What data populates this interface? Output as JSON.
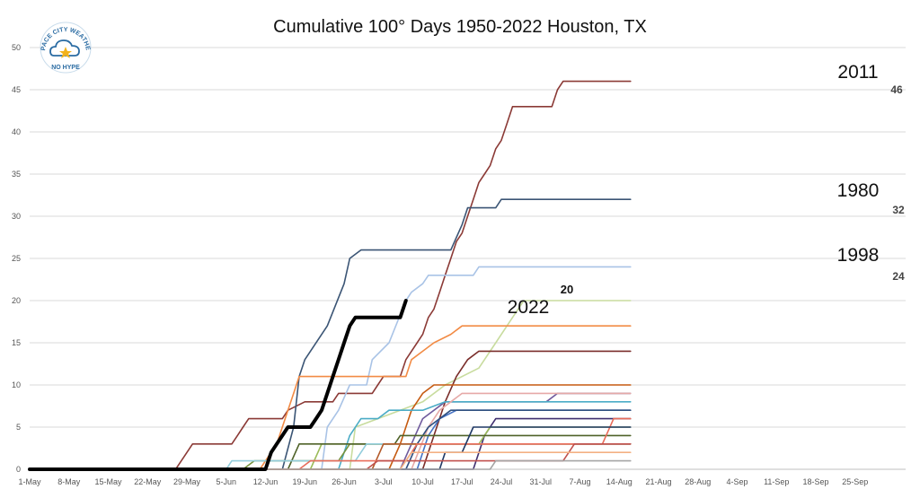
{
  "chart_data": {
    "type": "line",
    "title": "Cumulative 100° Days 1950-2022 Houston, TX",
    "xlabel": "",
    "ylabel": "",
    "x_ticks": [
      "1-May",
      "8-May",
      "15-May",
      "22-May",
      "29-May",
      "5-Jun",
      "12-Jun",
      "19-Jun",
      "26-Jun",
      "3-Jul",
      "10-Jul",
      "17-Jul",
      "24-Jul",
      "31-Jul",
      "7-Aug",
      "14-Aug",
      "21-Aug",
      "28-Aug",
      "4-Sep",
      "11-Sep",
      "18-Sep",
      "25-Sep"
    ],
    "y_ticks": [
      0,
      5,
      10,
      15,
      20,
      25,
      30,
      35,
      40,
      45,
      50
    ],
    "ylim": [
      0,
      50
    ],
    "xlim_days": [
      0,
      156
    ],
    "grid": "horizontal",
    "highlighted": [
      {
        "name": "2011",
        "end_label": "46",
        "color": "#8b3a36"
      },
      {
        "name": "1980",
        "end_label": "32",
        "color": "#3b5575"
      },
      {
        "name": "1998",
        "end_label": "24",
        "color": "#a9c3e6"
      },
      {
        "name": "2022",
        "end_label": "20",
        "color": "#000000"
      }
    ],
    "series": [
      {
        "name": "2022",
        "color": "#000000",
        "points": [
          [
            0,
            0
          ],
          [
            42,
            0
          ],
          [
            43,
            2
          ],
          [
            44,
            3
          ],
          [
            45,
            4
          ],
          [
            46,
            5
          ],
          [
            50,
            5
          ],
          [
            51,
            6
          ],
          [
            52,
            7
          ],
          [
            53,
            9
          ],
          [
            54,
            11
          ],
          [
            55,
            13
          ],
          [
            56,
            15
          ],
          [
            57,
            17
          ],
          [
            58,
            18
          ],
          [
            66,
            18
          ],
          [
            67,
            20
          ]
        ]
      },
      {
        "name": "2011",
        "color": "#8b3a36",
        "points": [
          [
            0,
            0
          ],
          [
            26,
            0
          ],
          [
            27,
            1
          ],
          [
            29,
            3
          ],
          [
            36,
            3
          ],
          [
            37,
            4
          ],
          [
            38,
            5
          ],
          [
            39,
            6
          ],
          [
            45,
            6
          ],
          [
            46,
            7
          ],
          [
            49,
            8
          ],
          [
            54,
            8
          ],
          [
            55,
            9
          ],
          [
            61,
            9
          ],
          [
            62,
            10
          ],
          [
            63,
            11
          ],
          [
            66,
            11
          ],
          [
            67,
            13
          ],
          [
            68,
            14
          ],
          [
            69,
            15
          ],
          [
            70,
            16
          ],
          [
            71,
            18
          ],
          [
            72,
            19
          ],
          [
            73,
            21
          ],
          [
            74,
            23
          ],
          [
            75,
            25
          ],
          [
            76,
            27
          ],
          [
            77,
            28
          ],
          [
            78,
            30
          ],
          [
            79,
            32
          ],
          [
            80,
            34
          ],
          [
            81,
            35
          ],
          [
            82,
            36
          ],
          [
            83,
            38
          ],
          [
            84,
            39
          ],
          [
            85,
            41
          ],
          [
            86,
            43
          ],
          [
            93,
            43
          ],
          [
            94,
            45
          ],
          [
            95,
            46
          ],
          [
            107,
            46
          ]
        ]
      },
      {
        "name": "1980",
        "color": "#3b5575",
        "points": [
          [
            0,
            0
          ],
          [
            45,
            0
          ],
          [
            47,
            5
          ],
          [
            48,
            11
          ],
          [
            49,
            13
          ],
          [
            53,
            17
          ],
          [
            56,
            22
          ],
          [
            57,
            25
          ],
          [
            59,
            26
          ],
          [
            75,
            26
          ],
          [
            77,
            29
          ],
          [
            78,
            31
          ],
          [
            83,
            31
          ],
          [
            84,
            32
          ],
          [
            107,
            32
          ]
        ]
      },
      {
        "name": "1998",
        "color": "#a9c3e6",
        "points": [
          [
            0,
            0
          ],
          [
            52,
            0
          ],
          [
            53,
            5
          ],
          [
            55,
            7
          ],
          [
            57,
            10
          ],
          [
            60,
            10
          ],
          [
            61,
            13
          ],
          [
            64,
            15
          ],
          [
            67,
            20
          ],
          [
            68,
            21
          ],
          [
            70,
            22
          ],
          [
            71,
            23
          ],
          [
            79,
            23
          ],
          [
            80,
            24
          ],
          [
            107,
            24
          ]
        ]
      },
      {
        "name": "",
        "color": "#c8dc9e",
        "points": [
          [
            0,
            0
          ],
          [
            57,
            0
          ],
          [
            58,
            5
          ],
          [
            66,
            7
          ],
          [
            70,
            8
          ],
          [
            74,
            10
          ],
          [
            80,
            12
          ],
          [
            83,
            15
          ],
          [
            86,
            18
          ],
          [
            88,
            20
          ],
          [
            107,
            20
          ]
        ]
      },
      {
        "name": "",
        "color": "#f28b45",
        "points": [
          [
            0,
            0
          ],
          [
            41,
            0
          ],
          [
            42,
            1
          ],
          [
            44,
            3
          ],
          [
            46,
            7
          ],
          [
            47,
            9
          ],
          [
            48,
            11
          ],
          [
            67,
            11
          ],
          [
            68,
            13
          ],
          [
            70,
            14
          ],
          [
            72,
            15
          ],
          [
            75,
            16
          ],
          [
            77,
            17
          ],
          [
            107,
            17
          ]
        ]
      },
      {
        "name": "",
        "color": "#7a2d2a",
        "points": [
          [
            0,
            0
          ],
          [
            70,
            0
          ],
          [
            72,
            4
          ],
          [
            74,
            8
          ],
          [
            76,
            11
          ],
          [
            78,
            13
          ],
          [
            80,
            14
          ],
          [
            107,
            14
          ]
        ]
      },
      {
        "name": "",
        "color": "#c55a11",
        "points": [
          [
            0,
            0
          ],
          [
            64,
            0
          ],
          [
            66,
            3
          ],
          [
            68,
            7
          ],
          [
            70,
            9
          ],
          [
            72,
            10
          ],
          [
            107,
            10
          ]
        ]
      },
      {
        "name": "",
        "color": "#6f5a9c",
        "points": [
          [
            0,
            0
          ],
          [
            66,
            0
          ],
          [
            68,
            3
          ],
          [
            70,
            6
          ],
          [
            74,
            8
          ],
          [
            92,
            8
          ],
          [
            94,
            9
          ],
          [
            107,
            9
          ]
        ]
      },
      {
        "name": "",
        "color": "#4bacc6",
        "points": [
          [
            0,
            0
          ],
          [
            55,
            0
          ],
          [
            57,
            4
          ],
          [
            59,
            6
          ],
          [
            62,
            6
          ],
          [
            64,
            7
          ],
          [
            70,
            7
          ],
          [
            74,
            8
          ],
          [
            107,
            8
          ]
        ]
      },
      {
        "name": "",
        "color": "#e6a9a7",
        "points": [
          [
            0,
            0
          ],
          [
            68,
            0
          ],
          [
            71,
            5
          ],
          [
            73,
            7
          ],
          [
            75,
            8
          ],
          [
            77,
            9
          ],
          [
            107,
            9
          ]
        ]
      },
      {
        "name": "",
        "color": "#4472c4",
        "points": [
          [
            0,
            0
          ],
          [
            69,
            0
          ],
          [
            71,
            4
          ],
          [
            73,
            6
          ],
          [
            76,
            7
          ],
          [
            107,
            7
          ]
        ]
      },
      {
        "name": "",
        "color": "#2f4f7f",
        "points": [
          [
            0,
            0
          ],
          [
            67,
            0
          ],
          [
            69,
            3
          ],
          [
            71,
            5
          ],
          [
            75,
            7
          ],
          [
            107,
            7
          ]
        ]
      },
      {
        "name": "",
        "color": "#403070",
        "points": [
          [
            0,
            0
          ],
          [
            79,
            0
          ],
          [
            81,
            4
          ],
          [
            83,
            6
          ],
          [
            107,
            6
          ]
        ]
      },
      {
        "name": "",
        "color": "#9bbb59",
        "points": [
          [
            0,
            0
          ],
          [
            50,
            0
          ],
          [
            52,
            3
          ],
          [
            80,
            3
          ],
          [
            82,
            5
          ],
          [
            107,
            5
          ]
        ]
      },
      {
        "name": "",
        "color": "#76923c",
        "points": [
          [
            0,
            0
          ],
          [
            38,
            0
          ],
          [
            40,
            1
          ],
          [
            55,
            1
          ],
          [
            57,
            3
          ],
          [
            107,
            3
          ]
        ]
      },
      {
        "name": "",
        "color": "#4f6228",
        "points": [
          [
            0,
            0
          ],
          [
            46,
            0
          ],
          [
            48,
            3
          ],
          [
            65,
            3
          ],
          [
            66,
            4
          ],
          [
            107,
            4
          ]
        ]
      },
      {
        "name": "",
        "color": "#92cddc",
        "points": [
          [
            0,
            0
          ],
          [
            35,
            0
          ],
          [
            36,
            1
          ],
          [
            58,
            1
          ],
          [
            60,
            3
          ],
          [
            107,
            3
          ]
        ]
      },
      {
        "name": "",
        "color": "#b35a2a",
        "points": [
          [
            0,
            0
          ],
          [
            61,
            0
          ],
          [
            63,
            3
          ],
          [
            107,
            3
          ]
        ]
      },
      {
        "name": "",
        "color": "#e96c5a",
        "points": [
          [
            0,
            0
          ],
          [
            48,
            0
          ],
          [
            50,
            1
          ],
          [
            67,
            1
          ],
          [
            69,
            3
          ],
          [
            102,
            3
          ],
          [
            104,
            6
          ],
          [
            107,
            6
          ]
        ]
      },
      {
        "name": "",
        "color": "#1f3864",
        "points": [
          [
            0,
            0
          ],
          [
            73,
            0
          ],
          [
            74,
            2
          ],
          [
            77,
            2
          ],
          [
            79,
            5
          ],
          [
            107,
            5
          ]
        ]
      },
      {
        "name": "",
        "color": "#c0504d",
        "points": [
          [
            0,
            0
          ],
          [
            60,
            0
          ],
          [
            62,
            1
          ],
          [
            95,
            1
          ],
          [
            97,
            3
          ],
          [
            107,
            3
          ]
        ]
      },
      {
        "name": "",
        "color": "#f4b183",
        "points": [
          [
            0,
            0
          ],
          [
            66,
            0
          ],
          [
            68,
            2
          ],
          [
            107,
            2
          ]
        ]
      },
      {
        "name": "",
        "color": "#a5a5a5",
        "points": [
          [
            0,
            0
          ],
          [
            82,
            0
          ],
          [
            83,
            1
          ],
          [
            107,
            1
          ]
        ]
      }
    ]
  },
  "logo": {
    "top": "SPACE CITY WEATHER",
    "bottom": "NO HYPE"
  }
}
